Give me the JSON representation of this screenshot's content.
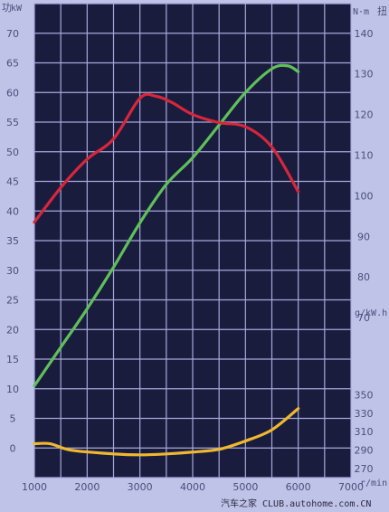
{
  "chart_data": {
    "type": "line",
    "title": "",
    "watermark": "汽车之家 CLUB.autohome.com.CN",
    "top_watermark": "汽车之家 CLUB.autohome.com.CN",
    "x_axis": {
      "label": "r/min",
      "range": [
        1000,
        7000
      ],
      "ticks": [
        1000,
        2000,
        3000,
        4000,
        5000,
        6000,
        7000
      ]
    },
    "left_axis": {
      "label": "功率",
      "unit": "kW",
      "range": [
        -5,
        75
      ],
      "ticks": [
        0,
        5,
        10,
        15,
        20,
        25,
        30,
        35,
        40,
        45,
        50,
        55,
        60,
        65,
        70
      ]
    },
    "right_torque_axis": {
      "label": "扭",
      "unit": "N·m",
      "ticks": [
        70,
        80,
        90,
        100,
        110,
        120,
        130,
        140
      ]
    },
    "right_fuel_axis": {
      "unit": "g/kW.h",
      "ticks": [
        270,
        290,
        310,
        330,
        350
      ]
    },
    "grid": true,
    "background": "#1a1c3e",
    "grid_color": "#a6a9da",
    "series": [
      {
        "key": "power",
        "color": "#5fc05a",
        "x": [
          1000,
          1500,
          2000,
          2500,
          3000,
          3500,
          4000,
          4500,
          5000,
          5500,
          5800,
          6000
        ],
        "y": [
          10.5,
          17,
          23.5,
          30.5,
          38,
          44.5,
          49,
          54.5,
          60,
          64,
          64.5,
          63.5
        ]
      },
      {
        "key": "torque",
        "color": "#d8263a",
        "axis": "right_torque_axis",
        "x": [
          1000,
          1500,
          2000,
          2500,
          3000,
          3300,
          3600,
          4000,
          4500,
          5000,
          5500,
          6000
        ],
        "y": [
          93.5,
          102,
          109,
          114,
          124,
          124.5,
          123,
          120,
          118,
          117,
          112,
          101
        ]
      },
      {
        "key": "fuel_consumption",
        "color": "#f0b82e",
        "axis": "right_fuel_axis",
        "x": [
          1000,
          1300,
          1700,
          2500,
          3000,
          3500,
          4000,
          4500,
          5000,
          5500,
          6000
        ],
        "y": [
          297,
          297,
          290,
          286,
          285,
          286,
          288,
          291,
          300,
          312,
          335
        ]
      }
    ]
  }
}
